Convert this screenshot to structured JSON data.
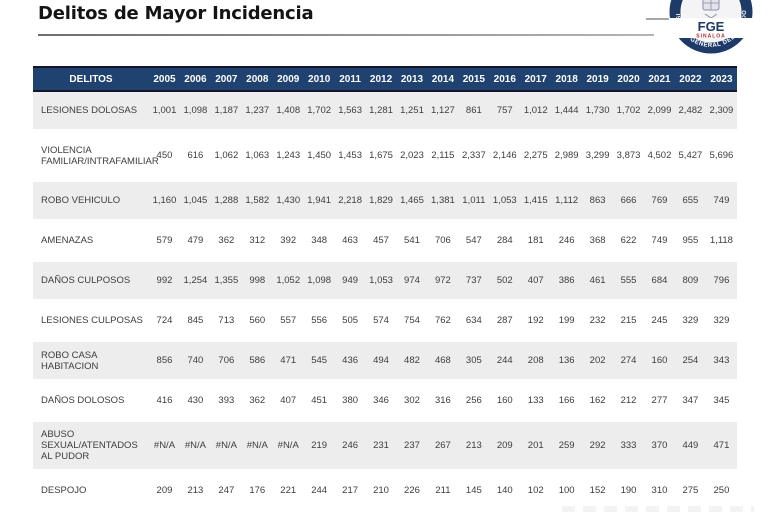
{
  "page": {
    "title": "Delitos de Mayor Incidencia"
  },
  "logo": {
    "acronym": "FGE",
    "state": "SINALOA",
    "ring_text": "FISCALÍA GENERAL DEL ESTADO",
    "navy": "#1e3a67",
    "red": "#b02a30"
  },
  "table": {
    "header_label": "DELITOS",
    "years": [
      "2005",
      "2006",
      "2007",
      "2008",
      "2009",
      "2010",
      "2011",
      "2012",
      "2013",
      "2014",
      "2015",
      "2016",
      "2017",
      "2018",
      "2019",
      "2020",
      "2021",
      "2022",
      "2023"
    ],
    "rows": [
      {
        "label": "LESIONES DOLOSAS",
        "values": [
          "1,001",
          "1,098",
          "1,187",
          "1,237",
          "1,408",
          "1,702",
          "1,563",
          "1,281",
          "1,251",
          "1,127",
          "861",
          "757",
          "1,012",
          "1,444",
          "1,730",
          "1,702",
          "2,099",
          "2,482",
          "2,309"
        ]
      },
      {
        "label": "VIOLENCIA FAMILIAR/INTRAFAMILIAR",
        "values": [
          "450",
          "616",
          "1,062",
          "1,063",
          "1,243",
          "1,450",
          "1,453",
          "1,675",
          "2,023",
          "2,115",
          "2,337",
          "2,146",
          "2,275",
          "2,989",
          "3,299",
          "3,873",
          "4,502",
          "5,427",
          "5,696"
        ]
      },
      {
        "label": "ROBO VEHICULO",
        "values": [
          "1,160",
          "1,045",
          "1,288",
          "1,582",
          "1,430",
          "1,941",
          "2,218",
          "1,829",
          "1,465",
          "1,381",
          "1,011",
          "1,053",
          "1,415",
          "1,112",
          "863",
          "666",
          "769",
          "655",
          "749"
        ]
      },
      {
        "label": "AMENAZAS",
        "values": [
          "579",
          "479",
          "362",
          "312",
          "392",
          "348",
          "463",
          "457",
          "541",
          "706",
          "547",
          "284",
          "181",
          "246",
          "368",
          "622",
          "749",
          "955",
          "1,118"
        ]
      },
      {
        "label": "DAÑOS CULPOSOS",
        "values": [
          "992",
          "1,254",
          "1,355",
          "998",
          "1,052",
          "1,098",
          "949",
          "1,053",
          "974",
          "972",
          "737",
          "502",
          "407",
          "386",
          "461",
          "555",
          "684",
          "809",
          "796"
        ]
      },
      {
        "label": "LESIONES CULPOSAS",
        "values": [
          "724",
          "845",
          "713",
          "560",
          "557",
          "556",
          "505",
          "574",
          "754",
          "762",
          "634",
          "287",
          "192",
          "199",
          "232",
          "215",
          "245",
          "329",
          "329"
        ]
      },
      {
        "label": "ROBO CASA HABITACION",
        "values": [
          "856",
          "740",
          "706",
          "586",
          "471",
          "545",
          "436",
          "494",
          "482",
          "468",
          "305",
          "244",
          "208",
          "136",
          "202",
          "274",
          "160",
          "254",
          "343"
        ]
      },
      {
        "label": "DAÑOS DOLOSOS",
        "values": [
          "416",
          "430",
          "393",
          "362",
          "407",
          "451",
          "380",
          "346",
          "302",
          "316",
          "256",
          "160",
          "133",
          "166",
          "162",
          "212",
          "277",
          "347",
          "345"
        ]
      },
      {
        "label": "ABUSO SEXUAL/ATENTADOS AL PUDOR",
        "values": [
          "#N/A",
          "#N/A",
          "#N/A",
          "#N/A",
          "#N/A",
          "219",
          "246",
          "231",
          "237",
          "267",
          "213",
          "209",
          "201",
          "259",
          "292",
          "333",
          "370",
          "449",
          "471"
        ]
      },
      {
        "label": "DESPOJO",
        "values": [
          "209",
          "213",
          "247",
          "176",
          "221",
          "244",
          "217",
          "210",
          "226",
          "211",
          "145",
          "140",
          "102",
          "100",
          "152",
          "190",
          "310",
          "275",
          "250"
        ]
      }
    ],
    "colors": {
      "header_bg": "#1f4270",
      "stripe": "#ededed",
      "border_dark": "#15152a"
    }
  }
}
